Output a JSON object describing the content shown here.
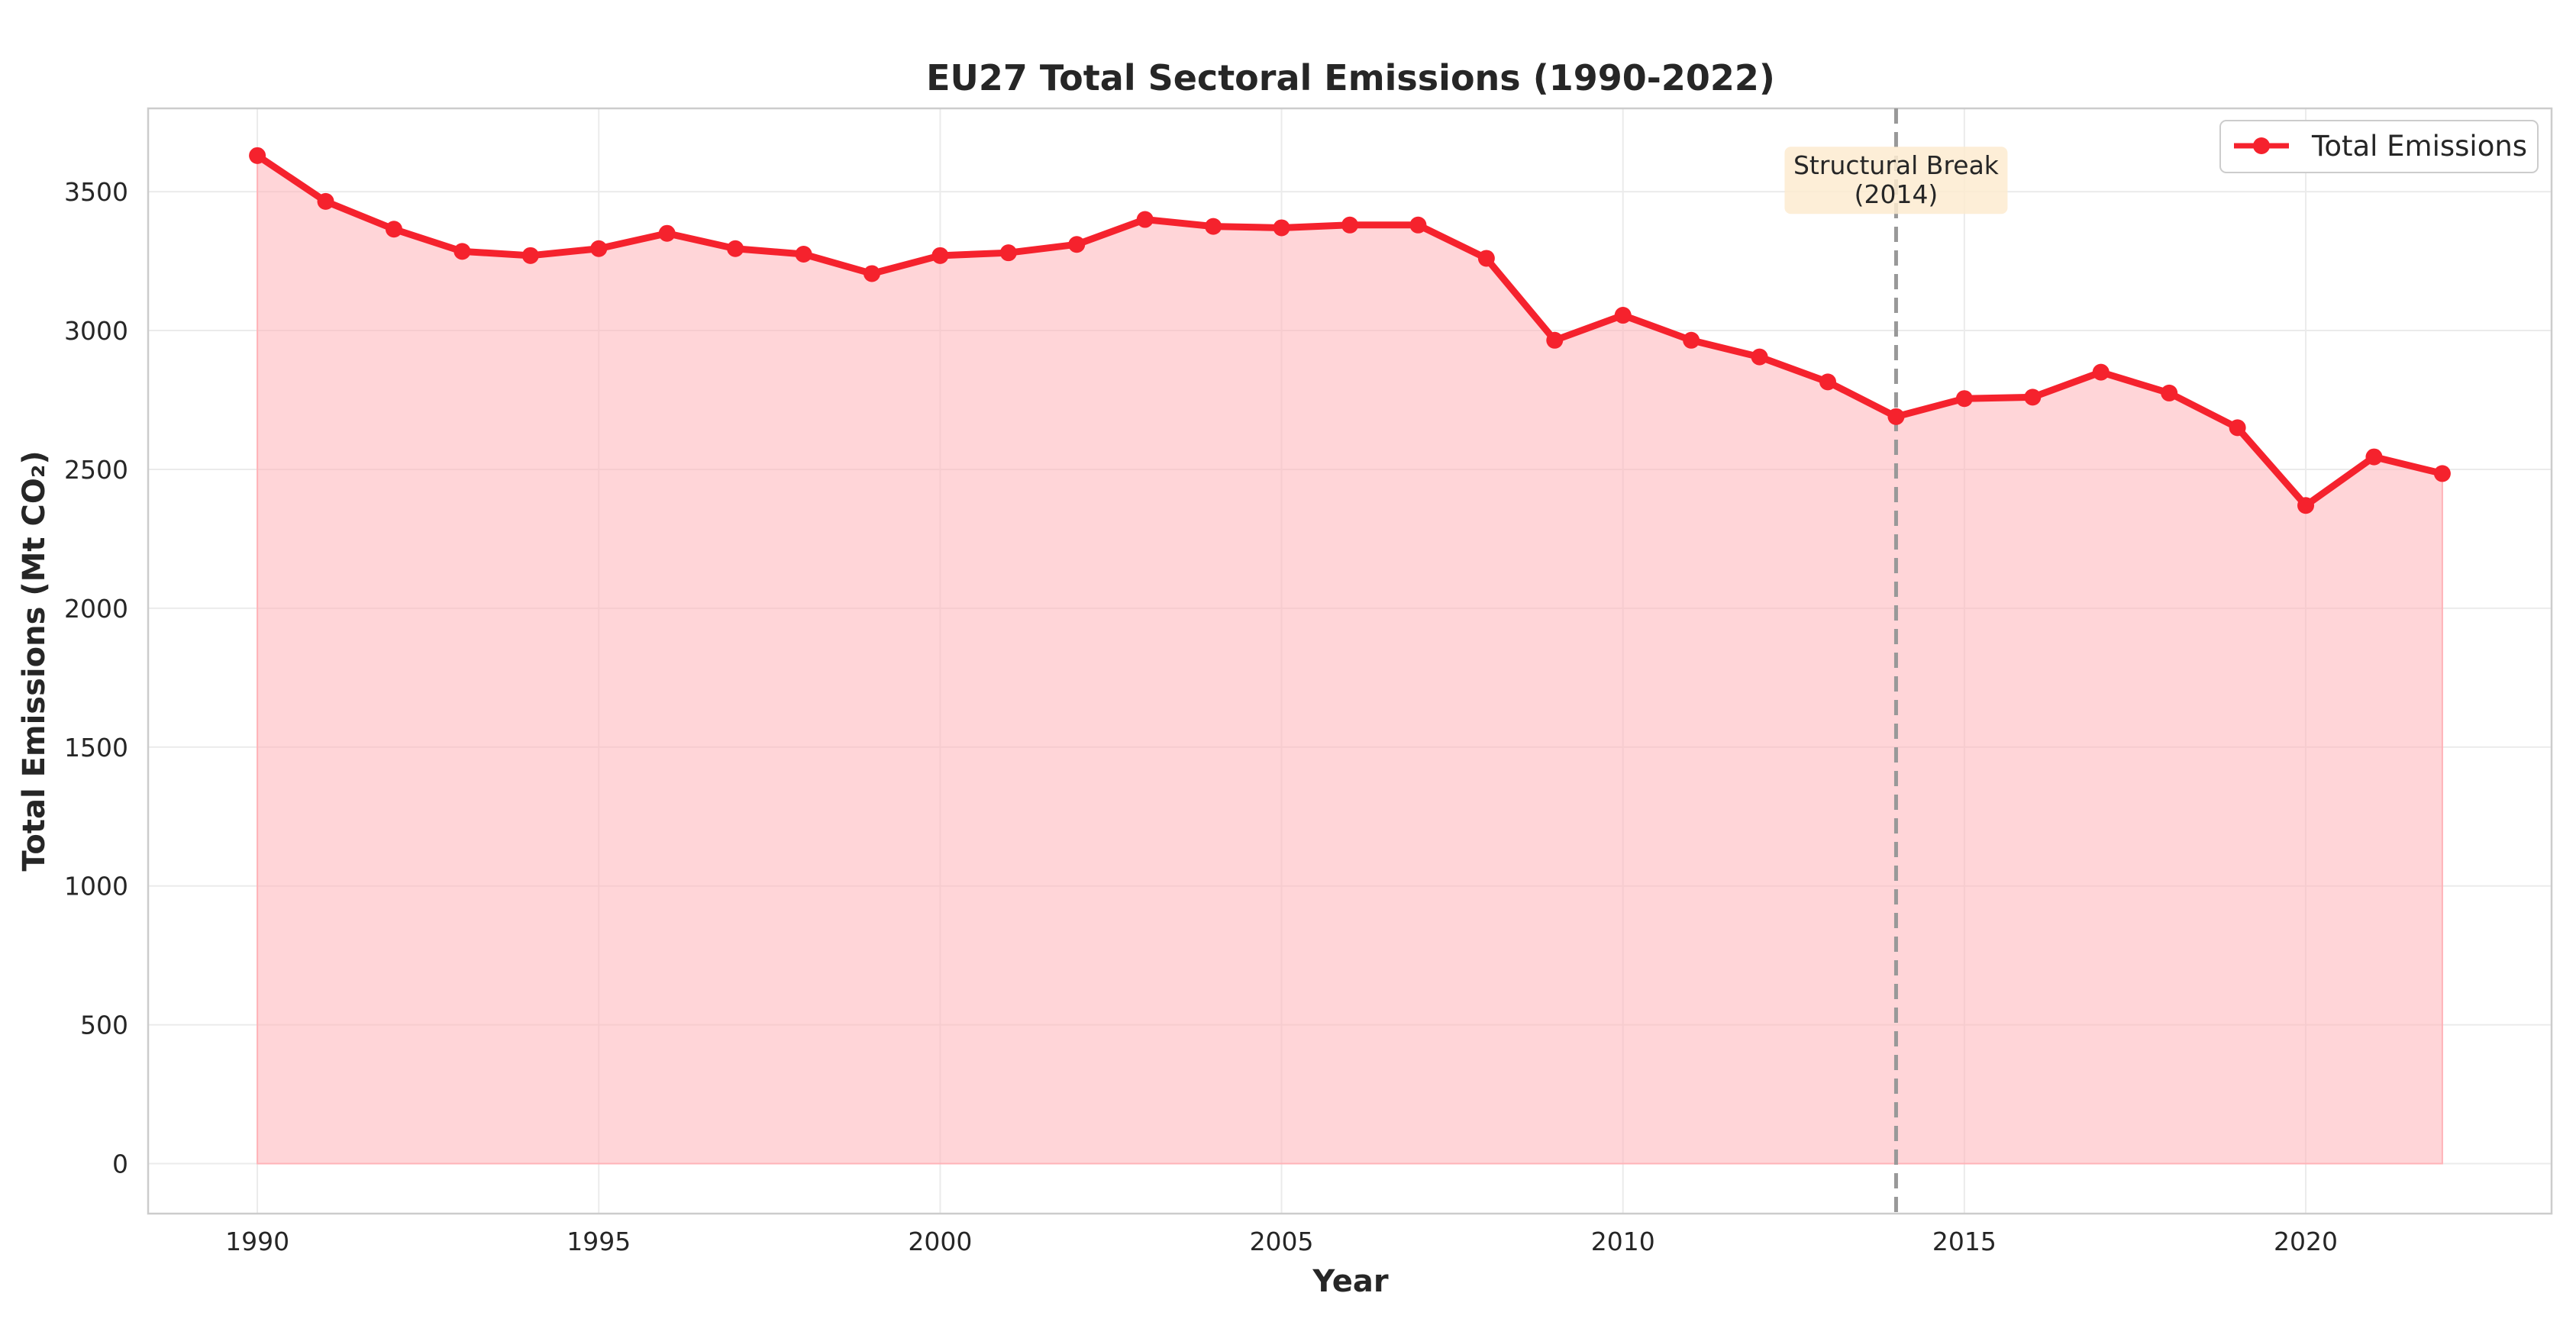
{
  "chart_data": {
    "type": "line",
    "title": "EU27 Total Sectoral Emissions (1990-2022)",
    "xlabel": "Year",
    "ylabel": "Total Emissions (Mt CO₂)",
    "xlim": [
      1988.4,
      2023.6
    ],
    "ylim": [
      -180,
      3800
    ],
    "x_ticks": [
      1990,
      1995,
      2000,
      2005,
      2010,
      2015,
      2020
    ],
    "y_ticks": [
      0,
      500,
      1000,
      1500,
      2000,
      2500,
      3000,
      3500
    ],
    "grid": true,
    "legend_position": "top-right",
    "series": [
      {
        "name": "Total Emissions",
        "color": "#f5222d",
        "fill_color": "#ffb3b8",
        "x": [
          1990,
          1991,
          1992,
          1993,
          1994,
          1995,
          1996,
          1997,
          1998,
          1999,
          2000,
          2001,
          2002,
          2003,
          2004,
          2005,
          2006,
          2007,
          2008,
          2009,
          2010,
          2011,
          2012,
          2013,
          2014,
          2015,
          2016,
          2017,
          2018,
          2019,
          2020,
          2021,
          2022
        ],
        "values": [
          3630,
          3465,
          3365,
          3285,
          3270,
          3295,
          3350,
          3295,
          3275,
          3205,
          3270,
          3280,
          3310,
          3400,
          3375,
          3370,
          3380,
          3380,
          3260,
          2965,
          3055,
          2965,
          2905,
          2815,
          2690,
          2755,
          2760,
          2850,
          2775,
          2650,
          2370,
          2545,
          2485
        ]
      }
    ],
    "annotations": [
      {
        "type": "vertical-line",
        "x": 2014,
        "line_color": "#999999",
        "label_lines": [
          "Structural Break",
          "(2014)"
        ],
        "label_bg": "#fdebd0",
        "label_y": 3530
      }
    ]
  }
}
